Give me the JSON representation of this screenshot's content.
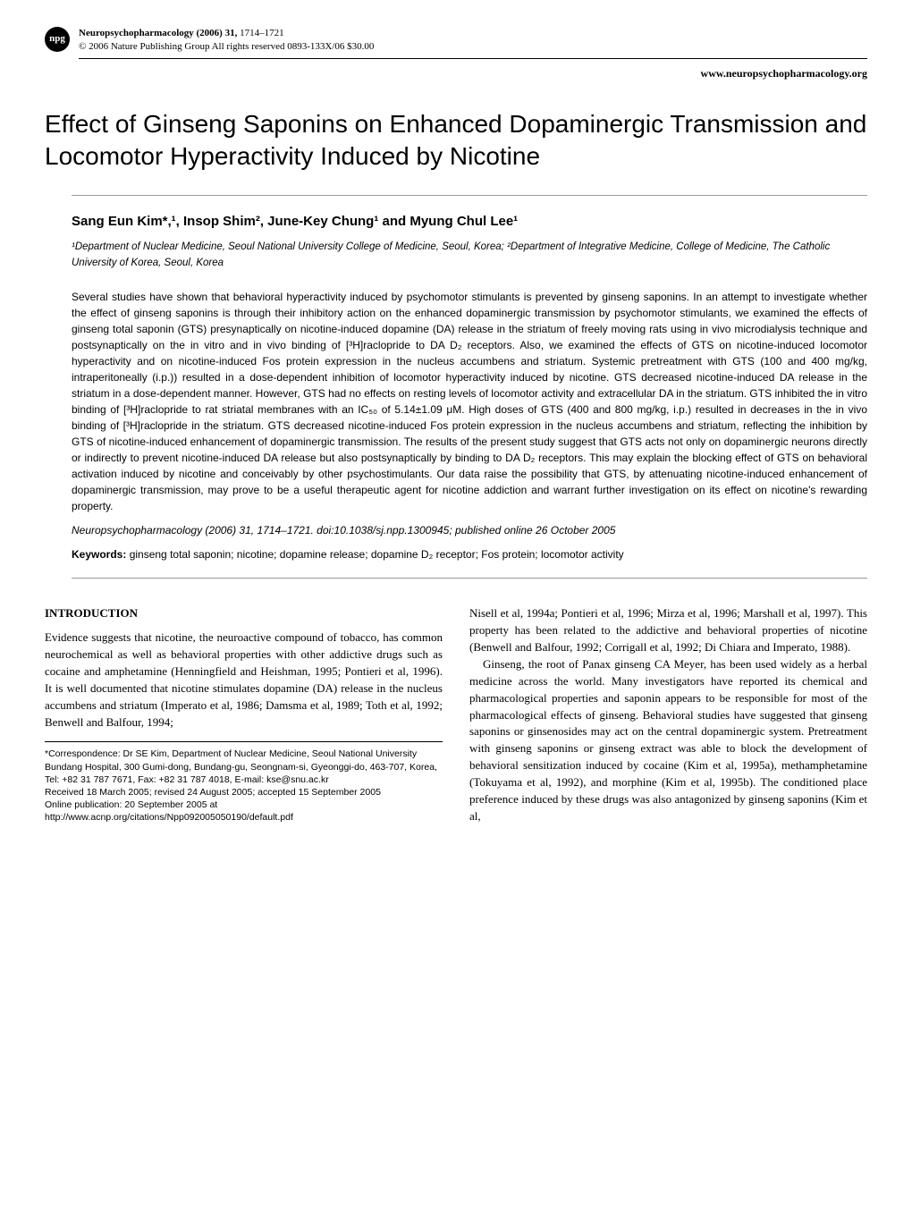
{
  "header": {
    "logo_text": "npg",
    "journal_name": "Neuropsychopharmacology (2006) 31,",
    "pages": "1714–1721",
    "copyright": "© 2006 Nature Publishing Group   All rights reserved 0893-133X/06 $30.00",
    "url": "www.neuropsychopharmacology.org"
  },
  "title": "Effect of Ginseng Saponins on Enhanced Dopaminergic Transmission and Locomotor Hyperactivity Induced by Nicotine",
  "authors": "Sang Eun Kim*,¹, Insop Shim², June-Key Chung¹ and Myung Chul Lee¹",
  "affiliations": "¹Department of Nuclear Medicine, Seoul National University College of Medicine, Seoul, Korea; ²Department of Integrative Medicine, College of Medicine, The Catholic University of Korea, Seoul, Korea",
  "abstract": "Several studies have shown that behavioral hyperactivity induced by psychomotor stimulants is prevented by ginseng saponins. In an attempt to investigate whether the effect of ginseng saponins is through their inhibitory action on the enhanced dopaminergic transmission by psychomotor stimulants, we examined the effects of ginseng total saponin (GTS) presynaptically on nicotine-induced dopamine (DA) release in the striatum of freely moving rats using in vivo microdialysis technique and postsynaptically on the in vitro and in vivo binding of [³H]raclopride to DA D₂ receptors. Also, we examined the effects of GTS on nicotine-induced locomotor hyperactivity and on nicotine-induced Fos protein expression in the nucleus accumbens and striatum. Systemic pretreatment with GTS (100 and 400 mg/kg, intraperitoneally (i.p.)) resulted in a dose-dependent inhibition of locomotor hyperactivity induced by nicotine. GTS decreased nicotine-induced DA release in the striatum in a dose-dependent manner. However, GTS had no effects on resting levels of locomotor activity and extracellular DA in the striatum. GTS inhibited the in vitro binding of [³H]raclopride to rat striatal membranes with an IC₅₀ of 5.14±1.09 μM. High doses of GTS (400 and 800 mg/kg, i.p.) resulted in decreases in the in vivo binding of [³H]raclopride in the striatum. GTS decreased nicotine-induced Fos protein expression in the nucleus accumbens and striatum, reflecting the inhibition by GTS of nicotine-induced enhancement of dopaminergic transmission. The results of the present study suggest that GTS acts not only on dopaminergic neurons directly or indirectly to prevent nicotine-induced DA release but also postsynaptically by binding to DA D₂ receptors. This may explain the blocking effect of GTS on behavioral activation induced by nicotine and conceivably by other psychostimulants. Our data raise the possibility that GTS, by attenuating nicotine-induced enhancement of dopaminergic transmission, may prove to be a useful therapeutic agent for nicotine addiction and warrant further investigation on its effect on nicotine's rewarding property.",
  "citation": "Neuropsychopharmacology (2006) 31, 1714–1721. doi:10.1038/sj.npp.1300945; published online 26 October 2005",
  "keywords_label": "Keywords:",
  "keywords": " ginseng total saponin; nicotine; dopamine release; dopamine D₂ receptor; Fos protein; locomotor activity",
  "intro_heading": "INTRODUCTION",
  "left_para": "Evidence suggests that nicotine, the neuroactive compound of tobacco, has common neurochemical as well as behavioral properties with other addictive drugs such as cocaine and amphetamine (Henningfield and Heishman, 1995; Pontieri et al, 1996). It is well documented that nicotine stimulates dopamine (DA) release in the nucleus accumbens and striatum (Imperato et al, 1986; Damsma et al, 1989; Toth et al, 1992; Benwell and Balfour, 1994;",
  "footnote1": "*Correspondence: Dr SE Kim, Department of Nuclear Medicine, Seoul National University Bundang Hospital, 300 Gumi-dong, Bundang-gu, Seongnam-si, Gyeonggi-do, 463-707, Korea, Tel: +82 31 787 7671, Fax: +82 31 787 4018, E-mail: kse@snu.ac.kr",
  "footnote2": "Received 18 March 2005; revised 24 August 2005; accepted 15 September 2005",
  "footnote3": "Online publication: 20 September 2005 at http://www.acnp.org/citations/Npp092005050190/default.pdf",
  "right_para1": "Nisell et al, 1994a; Pontieri et al, 1996; Mirza et al, 1996; Marshall et al, 1997). This property has been related to the addictive and behavioral properties of nicotine (Benwell and Balfour, 1992; Corrigall et al, 1992; Di Chiara and Imperato, 1988).",
  "right_para2": "Ginseng, the root of Panax ginseng CA Meyer, has been used widely as a herbal medicine across the world. Many investigators have reported its chemical and pharmacological properties and saponin appears to be responsible for most of the pharmacological effects of ginseng. Behavioral studies have suggested that ginseng saponins or ginsenosides may act on the central dopaminergic system. Pretreatment with ginseng saponins or ginseng extract was able to block the development of behavioral sensitization induced by cocaine (Kim et al, 1995a), methamphetamine (Tokuyama et al, 1992), and morphine (Kim et al, 1995b). The conditioned place preference induced by these drugs was also antagonized by ginseng saponins (Kim et al,"
}
